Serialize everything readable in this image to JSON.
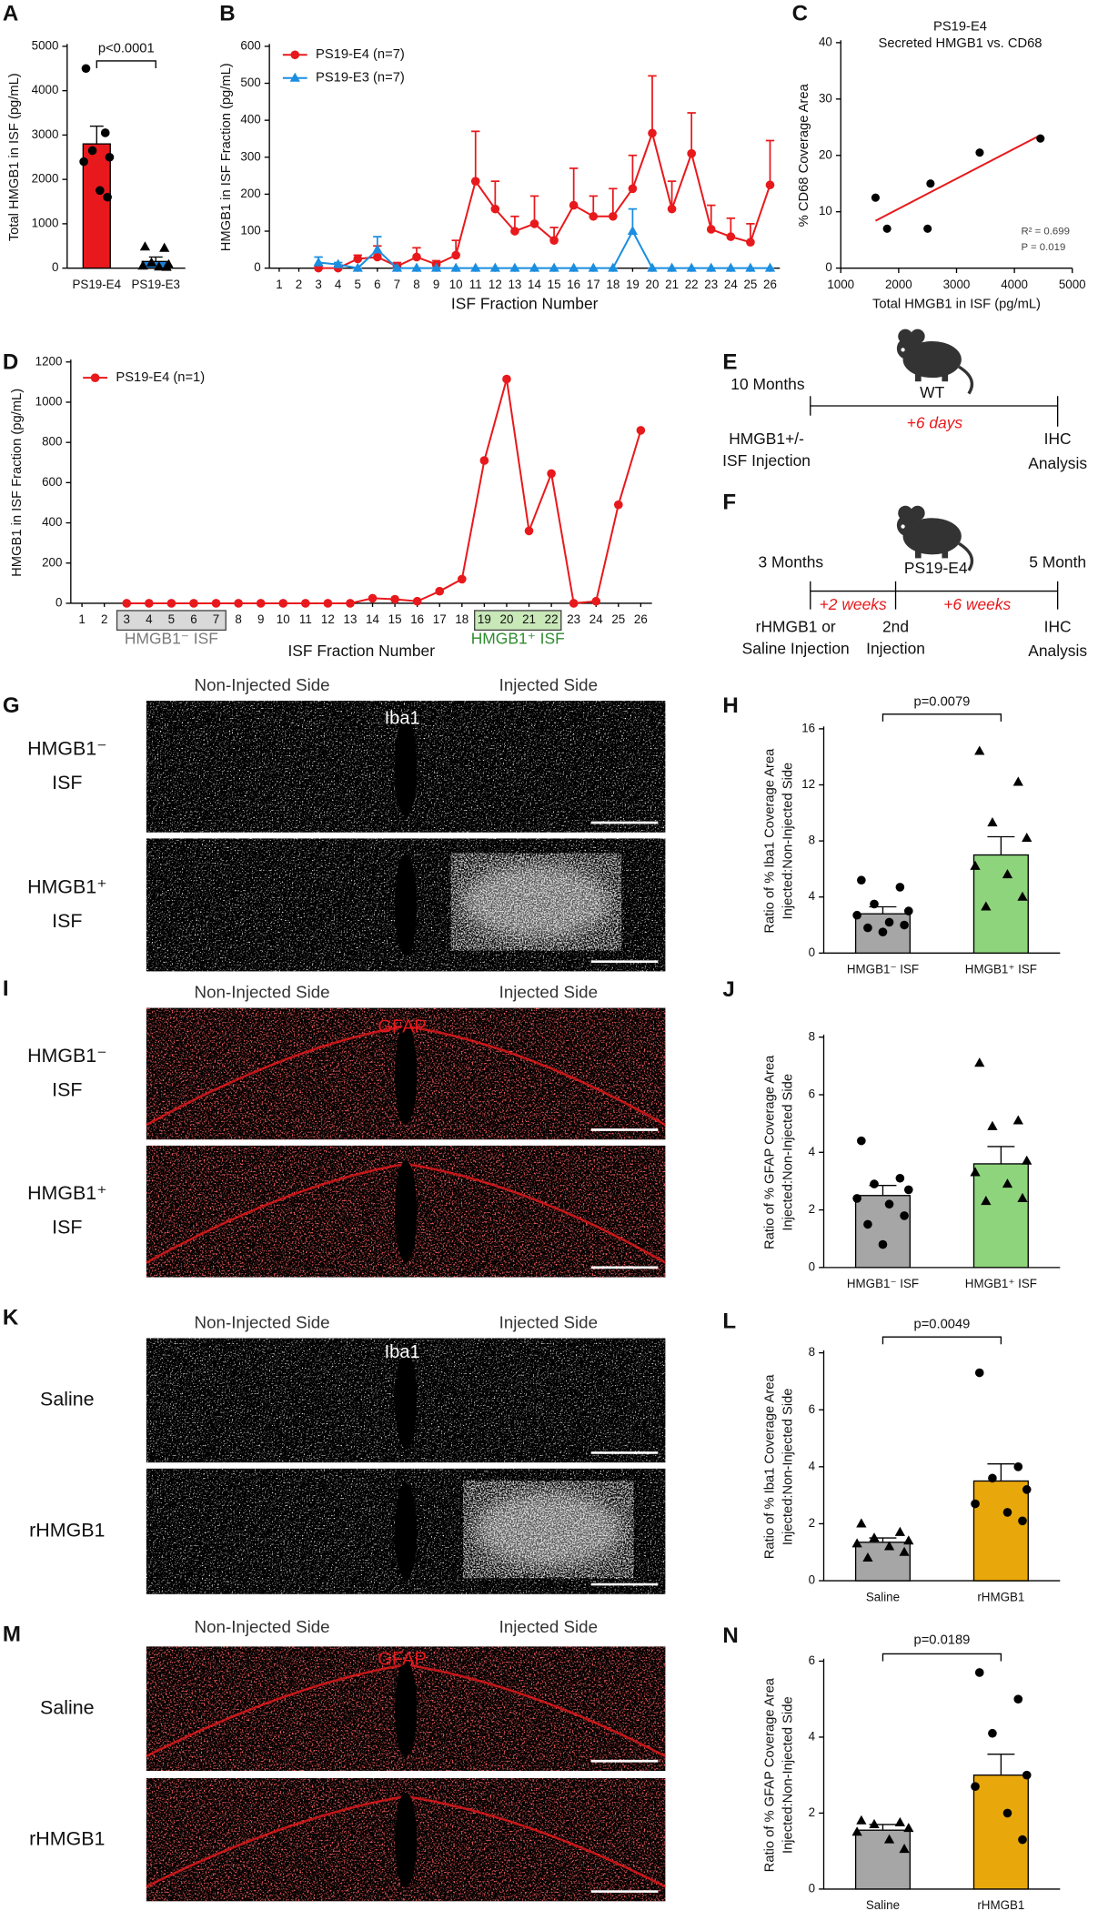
{
  "chart_data": [
    {
      "panel": "A",
      "type": "bar",
      "ylabel": "Total HMGB1 in ISF (pg/mL)",
      "categories": [
        "PS19-E4",
        "PS19-E3"
      ],
      "values": [
        2800,
        150
      ],
      "errors": [
        400,
        100
      ],
      "colors": [
        "#e8191c",
        "#1a7fd6"
      ],
      "markers": [
        "circle",
        "triangle"
      ],
      "points": [
        [
          4500,
          3050,
          2650,
          2500,
          2400,
          1750,
          1600
        ],
        [
          480,
          450,
          120,
          80,
          50,
          30,
          20
        ]
      ],
      "ylim": [
        0,
        5000
      ],
      "yticks": [
        0,
        1000,
        2000,
        3000,
        4000,
        5000
      ],
      "annotation": "p<0.0001"
    },
    {
      "panel": "B",
      "type": "line",
      "xlabel": "ISF Fraction Number",
      "ylabel": "HMGB1 in ISF Fraction (pg/mL)",
      "x": [
        1,
        2,
        3,
        4,
        5,
        6,
        7,
        8,
        9,
        10,
        11,
        12,
        13,
        14,
        15,
        16,
        17,
        18,
        19,
        20,
        21,
        22,
        23,
        24,
        25,
        26
      ],
      "xlim": [
        0.5,
        26.5
      ],
      "xticks": [
        1,
        2,
        3,
        4,
        5,
        6,
        7,
        8,
        9,
        10,
        11,
        12,
        13,
        14,
        15,
        16,
        17,
        18,
        19,
        20,
        21,
        22,
        23,
        24,
        25,
        26
      ],
      "ylim": [
        0,
        600
      ],
      "yticks": [
        0,
        100,
        200,
        300,
        400,
        500,
        600
      ],
      "series": [
        {
          "name": "PS19-E4 (n=7)",
          "color": "#e8191c",
          "marker": "circle",
          "values": [
            null,
            null,
            0,
            0,
            25,
            30,
            5,
            30,
            10,
            35,
            235,
            160,
            100,
            120,
            75,
            170,
            140,
            140,
            215,
            365,
            160,
            310,
            105,
            85,
            70,
            225
          ],
          "errors": [
            null,
            null,
            5,
            5,
            10,
            30,
            10,
            25,
            10,
            40,
            135,
            75,
            40,
            75,
            35,
            100,
            55,
            75,
            90,
            155,
            75,
            110,
            65,
            50,
            50,
            120
          ]
        },
        {
          "name": "PS19-E3 (n=7)",
          "color": "#1a8ee0",
          "marker": "triangle",
          "values": [
            null,
            null,
            15,
            10,
            0,
            50,
            0,
            0,
            0,
            0,
            0,
            0,
            0,
            0,
            0,
            0,
            0,
            0,
            100,
            0,
            0,
            0,
            0,
            0,
            0,
            0
          ],
          "errors": [
            null,
            null,
            15,
            5,
            0,
            35,
            0,
            0,
            0,
            0,
            0,
            0,
            0,
            0,
            0,
            0,
            0,
            0,
            60,
            0,
            0,
            0,
            0,
            0,
            0,
            0
          ]
        }
      ]
    },
    {
      "panel": "C",
      "type": "scatter",
      "title": [
        "PS19-E4",
        "Secreted HMGB1 vs. CD68"
      ],
      "xlabel": "Total HMGB1 in ISF (pg/mL)",
      "ylabel": "% CD68 Coverage Area",
      "x": [
        1600,
        1800,
        2500,
        2550,
        3400,
        4450
      ],
      "values": [
        12.5,
        7,
        7,
        15,
        20.5,
        23
      ],
      "color": "#000000",
      "fit": {
        "x": [
          1600,
          4450
        ],
        "y": [
          8.4,
          23.6
        ],
        "color": "#e8191c"
      },
      "annotations": [
        "R² = 0.699",
        "P = 0.019"
      ],
      "xlim": [
        1000,
        5000
      ],
      "xticks": [
        1000,
        2000,
        3000,
        4000,
        5000
      ],
      "ylim": [
        0,
        40
      ],
      "yticks": [
        0,
        10,
        20,
        30,
        40
      ]
    },
    {
      "panel": "D",
      "type": "line",
      "xlabel": "ISF Fraction Number",
      "ylabel": "HMGB1 in ISF Fraction (pg/mL)",
      "x": [
        1,
        2,
        3,
        4,
        5,
        6,
        7,
        8,
        9,
        10,
        11,
        12,
        13,
        14,
        15,
        16,
        17,
        18,
        19,
        20,
        21,
        22,
        23,
        24,
        25,
        26
      ],
      "xlim": [
        0.5,
        26.5
      ],
      "xticks": [
        1,
        2,
        3,
        4,
        5,
        6,
        7,
        8,
        9,
        10,
        11,
        12,
        13,
        14,
        15,
        16,
        17,
        18,
        19,
        20,
        21,
        22,
        23,
        24,
        25,
        26
      ],
      "ylim": [
        0,
        1200
      ],
      "yticks": [
        0,
        200,
        400,
        600,
        800,
        1000,
        1200
      ],
      "highlights": [
        {
          "range": [
            3,
            7
          ],
          "label": "HMGB1⁻ ISF",
          "color": "#d9d9d9",
          "text_color": "#7a7a7a"
        },
        {
          "range": [
            19,
            22
          ],
          "label": "HMGB1⁺ ISF",
          "color": "#c9e8b8",
          "text_color": "#2e8b2e"
        }
      ],
      "series": [
        {
          "name": "PS19-E4 (n=1)",
          "color": "#e8191c",
          "marker": "circle",
          "values": [
            null,
            null,
            0,
            0,
            0,
            0,
            0,
            0,
            0,
            0,
            0,
            0,
            0,
            25,
            20,
            10,
            60,
            120,
            710,
            1115,
            360,
            645,
            0,
            10,
            490,
            860
          ]
        }
      ]
    },
    {
      "panel": "H",
      "type": "bar",
      "ylabel": [
        "Ratio of % Iba1 Coverage Area",
        "Injected:Non-Injected Side"
      ],
      "categories": [
        "HMGB1⁻ ISF",
        "HMGB1⁺ ISF"
      ],
      "values": [
        2.8,
        7.0
      ],
      "errors": [
        0.5,
        1.3
      ],
      "colors": [
        "#a6a6a6",
        "#8ed47c"
      ],
      "markers": [
        "circle",
        "triangle"
      ],
      "points": [
        [
          5.2,
          4.7,
          3.5,
          3.0,
          2.7,
          2.2,
          2.0,
          1.8,
          1.5
        ],
        [
          14.4,
          12.2,
          9.3,
          8.2,
          6.2,
          5.6,
          4.0,
          3.3
        ]
      ],
      "ylim": [
        0,
        16
      ],
      "yticks": [
        0,
        4,
        8,
        12,
        16
      ],
      "annotation": "p=0.0079"
    },
    {
      "panel": "J",
      "type": "bar",
      "ylabel": [
        "Ratio of % GFAP Coverage Area",
        "Injected:Non-Injected Side"
      ],
      "categories": [
        "HMGB1⁻ ISF",
        "HMGB1⁺ ISF"
      ],
      "values": [
        2.5,
        3.6
      ],
      "errors": [
        0.35,
        0.6
      ],
      "colors": [
        "#a6a6a6",
        "#8ed47c"
      ],
      "markers": [
        "circle",
        "triangle"
      ],
      "points": [
        [
          4.4,
          3.1,
          2.9,
          2.7,
          2.4,
          2.2,
          1.8,
          1.5,
          0.8
        ],
        [
          7.1,
          5.1,
          4.9,
          3.7,
          3.3,
          2.9,
          2.4,
          2.3
        ]
      ],
      "ylim": [
        0,
        8
      ],
      "yticks": [
        0,
        2,
        4,
        6,
        8
      ]
    },
    {
      "panel": "L",
      "type": "bar",
      "ylabel": [
        "Ratio of % Iba1 Coverage Area",
        "Injected:Non-Injected Side"
      ],
      "categories": [
        "Saline",
        "rHMGB1"
      ],
      "values": [
        1.35,
        3.5
      ],
      "errors": [
        0.15,
        0.6
      ],
      "colors": [
        "#a6a6a6",
        "#e8a80c"
      ],
      "markers": [
        "triangle",
        "circle"
      ],
      "points": [
        [
          2.0,
          1.7,
          1.5,
          1.4,
          1.3,
          1.2,
          1.0,
          0.8
        ],
        [
          7.3,
          4.0,
          3.6,
          3.2,
          2.7,
          2.4,
          2.1
        ]
      ],
      "ylim": [
        0,
        8
      ],
      "yticks": [
        0,
        2,
        4,
        6,
        8
      ],
      "annotation": "p=0.0049"
    },
    {
      "panel": "N",
      "type": "bar",
      "ylabel": [
        "Ratio of % GFAP Coverage Area",
        "Injected:Non-Injected Side"
      ],
      "categories": [
        "Saline",
        "rHMGB1"
      ],
      "values": [
        1.55,
        3.0
      ],
      "errors": [
        0.15,
        0.55
      ],
      "colors": [
        "#a6a6a6",
        "#e8a80c"
      ],
      "markers": [
        "triangle",
        "circle"
      ],
      "points": [
        [
          1.8,
          1.75,
          1.7,
          1.6,
          1.5,
          1.3,
          1.05
        ],
        [
          5.7,
          5.0,
          4.1,
          3.0,
          2.7,
          2.0,
          1.3
        ]
      ],
      "ylim": [
        0,
        6
      ],
      "yticks": [
        0,
        2,
        4,
        6
      ],
      "annotation": "p=0.0189"
    }
  ],
  "schematics": [
    {
      "panel": "E",
      "start": "10 Months",
      "mouse": "WT",
      "intervals": [
        "+6 days"
      ],
      "steps": [
        [
          "HMGB1+/-",
          "ISF Injection"
        ],
        [
          "IHC",
          "Analysis"
        ]
      ]
    },
    {
      "panel": "F",
      "start": "3 Months",
      "mouse": "PS19-E4",
      "end": "5 Month",
      "intervals": [
        "+2 weeks",
        "+6 weeks"
      ],
      "steps": [
        [
          "rHMGB1 or",
          "Saline Injection"
        ],
        [
          "2nd",
          "Injection"
        ],
        [
          "IHC",
          "Analysis"
        ]
      ]
    }
  ],
  "micrographs": [
    {
      "panel": "G",
      "sides": [
        "Non-Injected Side",
        "Injected Side"
      ],
      "stain": "Iba1",
      "rows": [
        [
          "HMGB1⁻",
          "ISF"
        ],
        [
          "HMGB1⁺",
          "ISF"
        ]
      ]
    },
    {
      "panel": "I",
      "sides": [
        "Non-Injected Side",
        "Injected Side"
      ],
      "stain": "GFAP",
      "rows": [
        [
          "HMGB1⁻",
          "ISF"
        ],
        [
          "HMGB1⁺",
          "ISF"
        ]
      ]
    },
    {
      "panel": "K",
      "sides": [
        "Non-Injected Side",
        "Injected Side"
      ],
      "stain": "Iba1",
      "rows": [
        [
          "Saline"
        ],
        [
          "rHMGB1"
        ]
      ]
    },
    {
      "panel": "M",
      "sides": [
        "Non-Injected Side",
        "Injected Side"
      ],
      "stain": "GFAP",
      "rows": [
        [
          "Saline"
        ],
        [
          "rHMGB1"
        ]
      ]
    }
  ]
}
